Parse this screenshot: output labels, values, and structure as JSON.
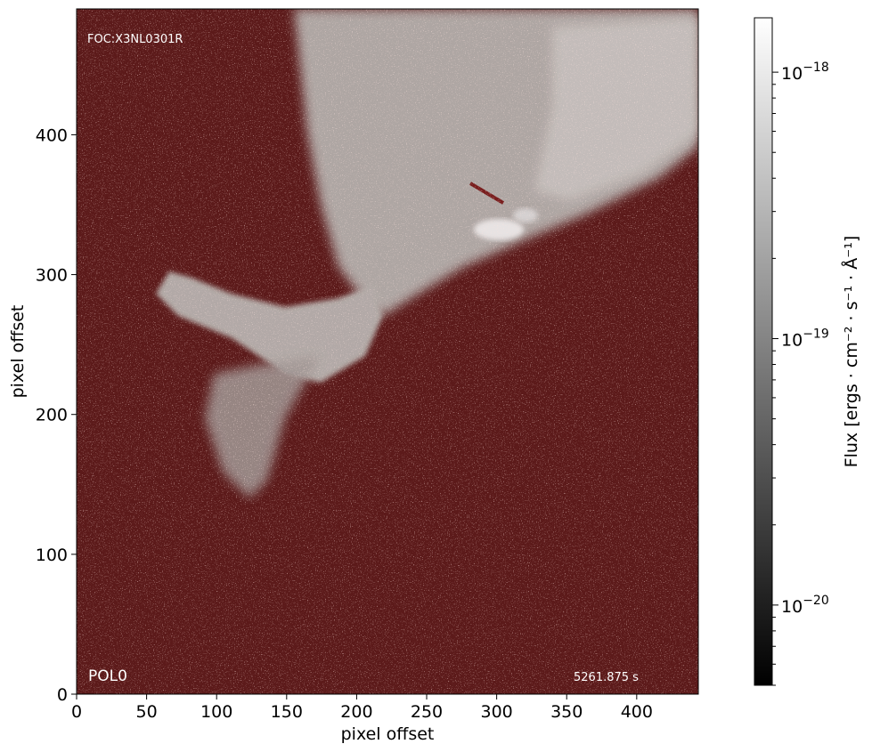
{
  "chart_data": {
    "type": "heatmap",
    "xlabel": "pixel offset",
    "ylabel": "pixel offset",
    "xlim": [
      0,
      444
    ],
    "ylim": [
      0,
      490
    ],
    "x_ticks": [
      0,
      50,
      100,
      150,
      200,
      250,
      300,
      350,
      400
    ],
    "y_ticks": [
      0,
      100,
      200,
      300,
      400
    ],
    "grid": false,
    "colormap": "gray",
    "background_color": "#5c1a1a",
    "colorbar": {
      "label": "Flux [ergs · cm⁻² · s⁻¹ · Å⁻¹]",
      "scale": "log",
      "range": [
        5e-21,
        1.6e-18
      ],
      "ticks": [
        {
          "value": 1e-18,
          "base": "10",
          "exp": "−18"
        },
        {
          "value": 1e-19,
          "base": "10",
          "exp": "−19"
        },
        {
          "value": 1e-20,
          "base": "10",
          "exp": "−20"
        }
      ]
    },
    "annotations": {
      "top_left": "FOC:X3NL0301R",
      "bottom_left": "POL0",
      "bottom_right": "5261.875 s"
    }
  }
}
